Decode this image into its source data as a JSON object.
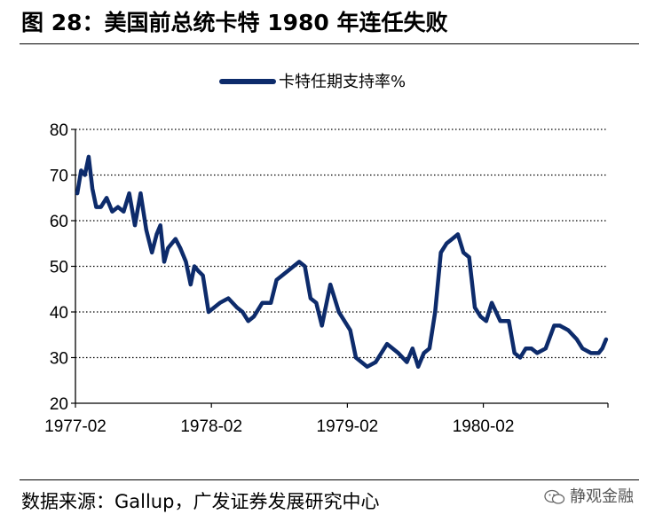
{
  "figure": {
    "title": "图 28：美国前总统卡特 1980 年连任失败",
    "source": "数据来源：Gallup，广发证券发展研究中心",
    "watermark": "静观金融",
    "watermark_icon": "wechat-icon"
  },
  "chart_data": {
    "type": "line",
    "title": "",
    "xlabel": "",
    "ylabel": "",
    "ylim": [
      20,
      80
    ],
    "yticks": [
      20,
      30,
      40,
      50,
      60,
      70,
      80
    ],
    "xlim": [
      "1977-02",
      "1981-01"
    ],
    "xtick_labels": [
      "1977-02",
      "1978-02",
      "1979-02",
      "1980-02"
    ],
    "grid": "horizontal dotted",
    "legend_position": "top-center",
    "line_color": "#0d2b6b",
    "series": [
      {
        "name": "卡特任期支持率%",
        "x": [
          "1977-02",
          "1977-02",
          "1977-02",
          "1977-03",
          "1977-03",
          "1977-03",
          "1977-04",
          "1977-04",
          "1977-05",
          "1977-05",
          "1977-06",
          "1977-06",
          "1977-07",
          "1977-07",
          "1977-08",
          "1977-08",
          "1977-09",
          "1977-09",
          "1977-09",
          "1977-10",
          "1977-10",
          "1977-10",
          "1977-11",
          "1977-11",
          "1977-12",
          "1977-12",
          "1977-12",
          "1978-01",
          "1978-01",
          "1978-02",
          "1978-02",
          "1978-03",
          "1978-04",
          "1978-04",
          "1978-05",
          "1978-05",
          "1978-06",
          "1978-07",
          "1978-07",
          "1978-08",
          "1978-08",
          "1978-09",
          "1978-09",
          "1978-10",
          "1978-10",
          "1978-11",
          "1978-11",
          "1978-12",
          "1979-01",
          "1979-01",
          "1979-02",
          "1979-02",
          "1979-03",
          "1979-03",
          "1979-04",
          "1979-05",
          "1979-06",
          "1979-07",
          "1979-07",
          "1979-08",
          "1979-08",
          "1979-09",
          "1979-09",
          "1979-10",
          "1979-10",
          "1979-11",
          "1979-11",
          "1979-12",
          "1979-12",
          "1980-01",
          "1980-01",
          "1980-02",
          "1980-02",
          "1980-03",
          "1980-04",
          "1980-04",
          "1980-05",
          "1980-05",
          "1980-06",
          "1980-06",
          "1980-07",
          "1980-08",
          "1980-08",
          "1980-09",
          "1980-10",
          "1980-10",
          "1980-11",
          "1980-12",
          "1980-12",
          "1980-12"
        ],
        "y": [
          66,
          71,
          70,
          74,
          67,
          63,
          63,
          65,
          62,
          63,
          62,
          66,
          59,
          66,
          58,
          53,
          57,
          59,
          51,
          54,
          55,
          56,
          54,
          51,
          46,
          50,
          49,
          48,
          40,
          41,
          42,
          43,
          41,
          40,
          38,
          39,
          42,
          42,
          47,
          48,
          49,
          50,
          51,
          50,
          43,
          42,
          37,
          46,
          40,
          38,
          36,
          30,
          29,
          28,
          29,
          33,
          31,
          29,
          32,
          28,
          31,
          32,
          40,
          53,
          55,
          56,
          57,
          53,
          52,
          41,
          39,
          38,
          42,
          38,
          38,
          31,
          30,
          32,
          32,
          31,
          32,
          37,
          37,
          36,
          34,
          32,
          31,
          31,
          32,
          34
        ]
      }
    ]
  }
}
